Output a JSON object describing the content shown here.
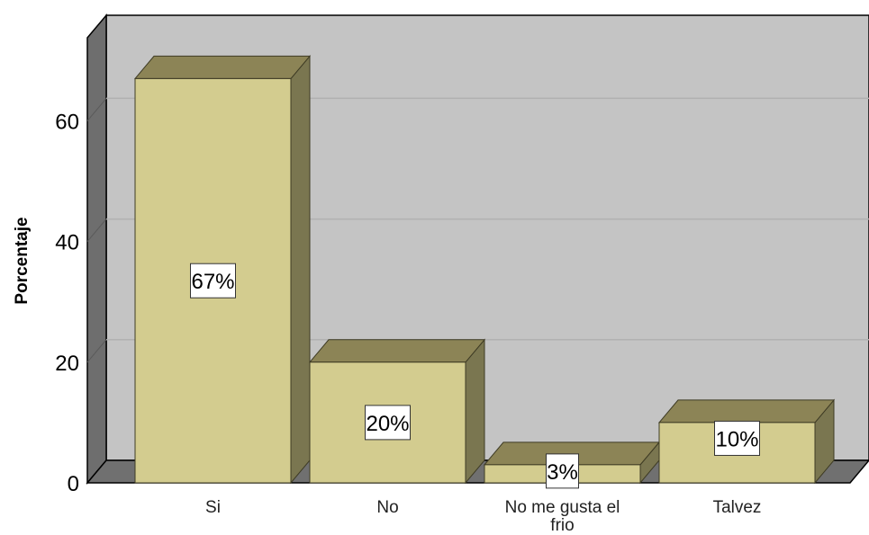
{
  "chart_data": {
    "type": "bar",
    "title": "",
    "xlabel": "",
    "ylabel": "Porcentaje",
    "categories": [
      "Si",
      "No",
      "No me gusta el frio",
      "Talvez"
    ],
    "values": [
      67,
      20,
      3,
      10
    ],
    "data_labels": [
      "67%",
      "20%",
      "3%",
      "10%"
    ],
    "yticks": [
      0,
      20,
      40,
      60
    ],
    "ylim": [
      0,
      70
    ],
    "grid": true,
    "three_d": true,
    "colors": {
      "bar_front": "#d3cc8f",
      "bar_top": "#8c8456",
      "bar_side": "#7a7650",
      "bar_stroke": "#3e3b24",
      "wall": "#c4c4c4",
      "side_wall": "#6e6e6e",
      "floor": "#707070",
      "gridline": "#b1b1b1"
    }
  }
}
